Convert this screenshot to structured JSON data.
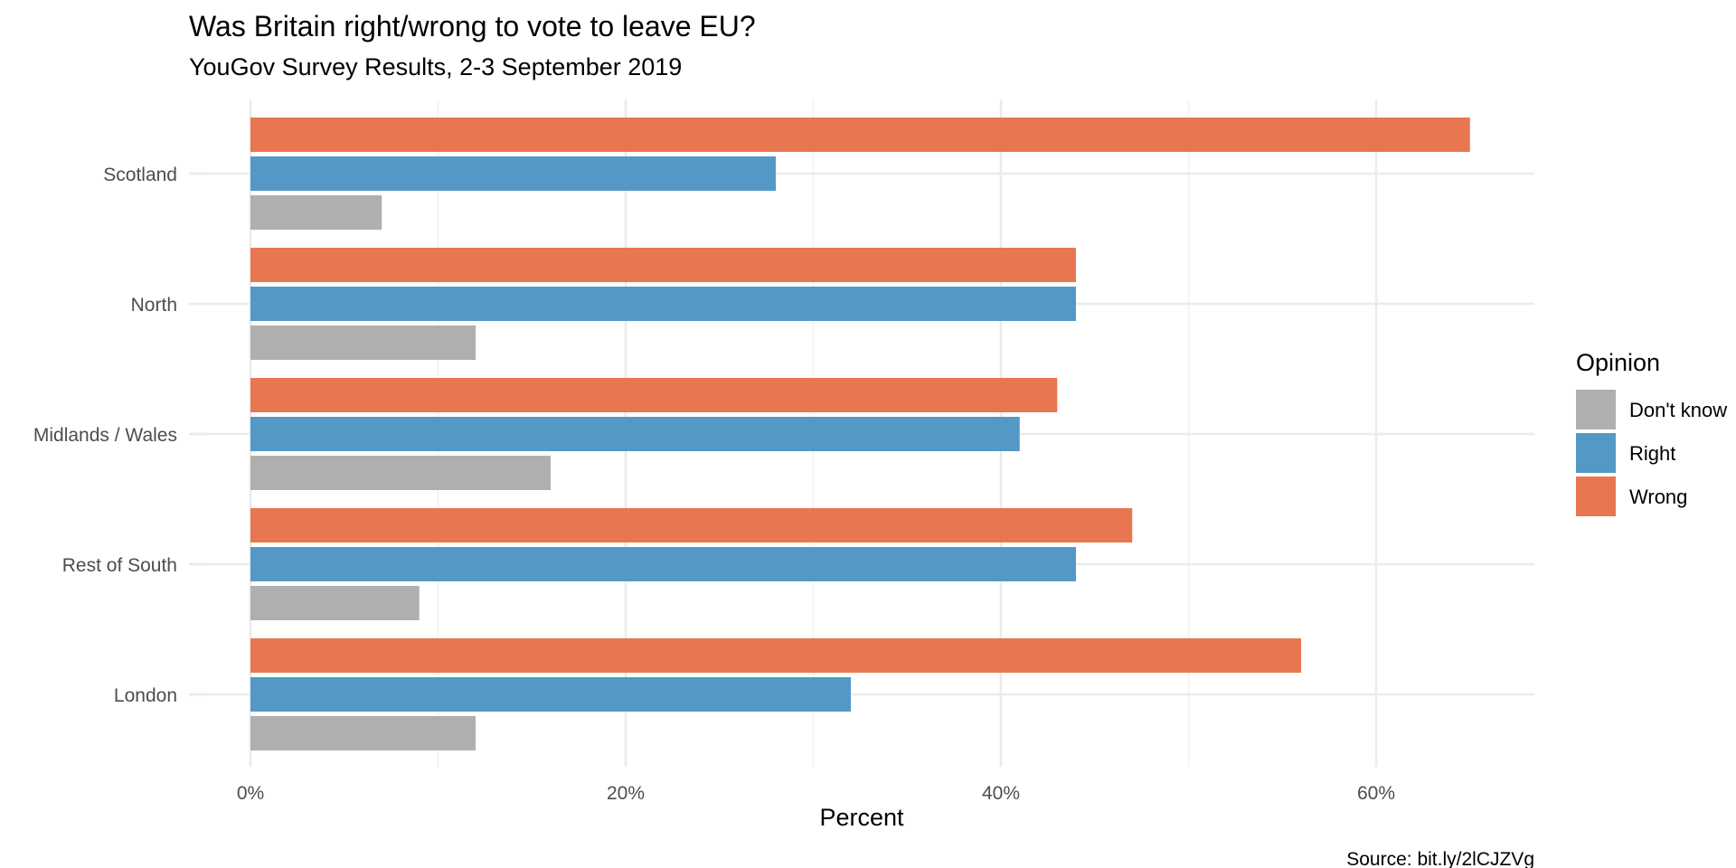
{
  "chart_data": {
    "type": "bar",
    "orientation": "horizontal",
    "title": "Was Britain right/wrong to vote to leave EU?",
    "subtitle": "YouGov Survey Results, 2-3 September 2019",
    "xlabel": "Percent",
    "ylabel": "",
    "caption": "Source: bit.ly/2lCJZVg",
    "xlim": [
      0,
      68
    ],
    "x_ticks": [
      {
        "value": 0,
        "label": "0%"
      },
      {
        "value": 20,
        "label": "20%"
      },
      {
        "value": 40,
        "label": "40%"
      },
      {
        "value": 60,
        "label": "60%"
      }
    ],
    "x_minor_ticks": [
      10,
      30,
      50
    ],
    "grid": true,
    "categories": [
      "Scotland",
      "North",
      "Midlands / Wales",
      "Rest of South",
      "London"
    ],
    "series": [
      {
        "name": "Wrong",
        "color": "#e87651",
        "values": [
          65,
          44,
          43,
          47,
          56
        ]
      },
      {
        "name": "Right",
        "color": "#5499c5",
        "values": [
          28,
          44,
          41,
          44,
          32
        ]
      },
      {
        "name": "Don't know",
        "color": "#afafaf",
        "values": [
          7,
          12,
          16,
          9,
          12
        ]
      }
    ],
    "legend": {
      "title": "Opinion",
      "position": "right",
      "entries": [
        {
          "label": "Don't know",
          "color": "#afafaf"
        },
        {
          "label": "Right",
          "color": "#5499c5"
        },
        {
          "label": "Wrong",
          "color": "#e87651"
        }
      ]
    }
  }
}
